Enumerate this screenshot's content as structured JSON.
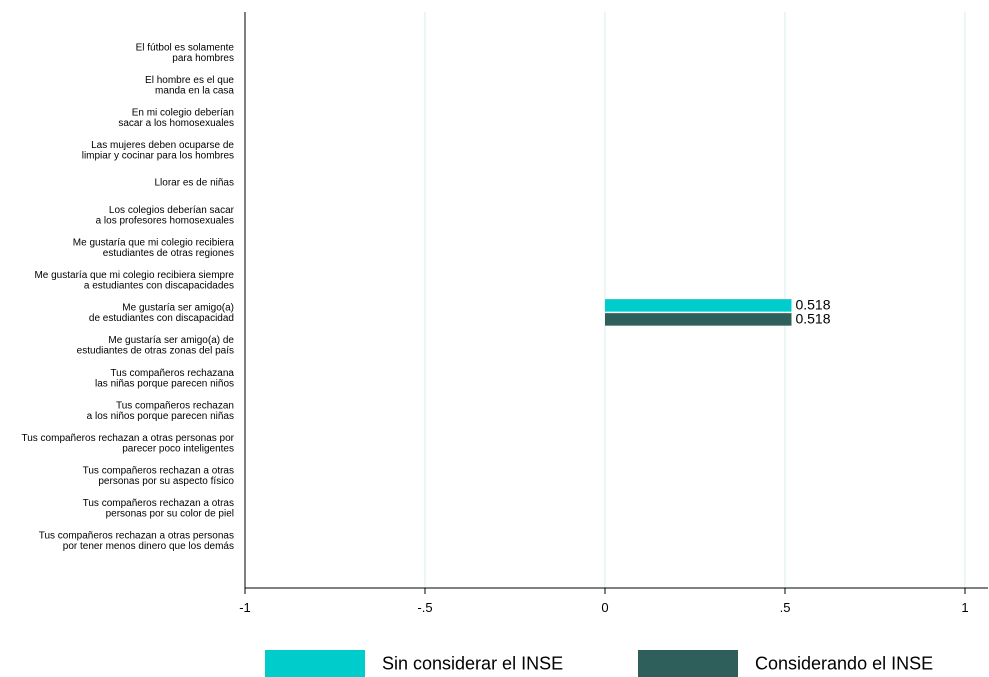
{
  "chart_data": {
    "type": "bar",
    "orientation": "horizontal",
    "title": "",
    "xlabel": "",
    "ylabel": "",
    "xlim": [
      -1,
      1
    ],
    "x_ticks": [
      -1,
      -0.5,
      0,
      0.5,
      1
    ],
    "x_tick_labels": [
      "-1",
      "-.5",
      "0",
      ".5",
      "1"
    ],
    "grid": "vertical",
    "legend_position": "bottom",
    "categories": [
      [
        "El fútbol es solamente",
        "para hombres"
      ],
      [
        "El hombre es el que",
        "manda en la casa"
      ],
      [
        "En mi colegio deberían",
        "sacar a los homosexuales"
      ],
      [
        "Las mujeres deben ocuparse de",
        "limpiar y cocinar para los hombres"
      ],
      [
        "Llorar es de niñas"
      ],
      [
        "Los colegios deberían sacar",
        "a los profesores homosexuales"
      ],
      [
        "Me gustaría que mi colegio recibiera",
        "estudiantes de otras regiones"
      ],
      [
        "Me gustaría que mi colegio recibiera siempre",
        "a estudiantes con discapacidades"
      ],
      [
        "Me gustaría ser amigo(a)",
        "de estudiantes con discapacidad"
      ],
      [
        "Me gustaría ser amigo(a) de",
        "estudiantes de otras zonas del país"
      ],
      [
        "Tus compañeros rechazana",
        "las niñas porque parecen niños"
      ],
      [
        "Tus compañeros rechazan",
        "a los niños porque parecen niñas"
      ],
      [
        "Tus compañeros rechazan a otras personas por",
        "parecer poco inteligentes"
      ],
      [
        "Tus compañeros rechazan a otras",
        "personas por su aspecto físico"
      ],
      [
        "Tus compañeros rechazan a otras",
        "personas por su color de piel"
      ],
      [
        "Tus compañeros rechazan a otras personas",
        "por tener menos dinero que los demás"
      ]
    ],
    "series": [
      {
        "name": "Sin considerar el INSE",
        "color": "#00cccc",
        "values": [
          null,
          null,
          null,
          null,
          null,
          null,
          null,
          null,
          0.518,
          null,
          null,
          null,
          null,
          null,
          null,
          null
        ],
        "data_labels": [
          null,
          null,
          null,
          null,
          null,
          null,
          null,
          null,
          "0.518",
          null,
          null,
          null,
          null,
          null,
          null,
          null
        ]
      },
      {
        "name": "Considerando el INSE",
        "color": "#2f5f5a",
        "values": [
          null,
          null,
          null,
          null,
          null,
          null,
          null,
          null,
          0.518,
          null,
          null,
          null,
          null,
          null,
          null,
          null
        ],
        "data_labels": [
          null,
          null,
          null,
          null,
          null,
          null,
          null,
          null,
          "0.518",
          null,
          null,
          null,
          null,
          null,
          null,
          null
        ]
      }
    ],
    "gridline_color": "#e0f0f0"
  }
}
